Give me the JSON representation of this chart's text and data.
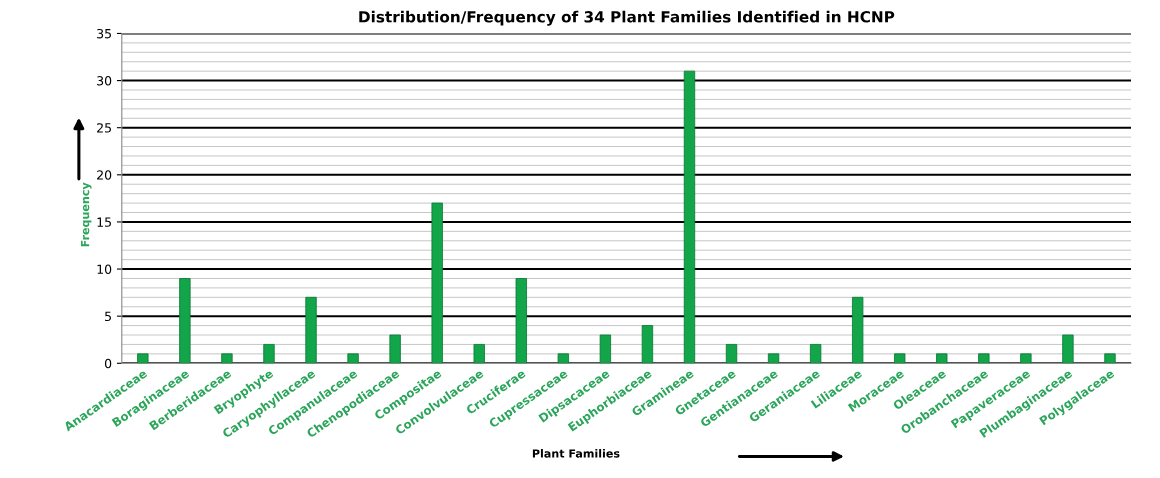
{
  "chart_data": {
    "type": "bar",
    "title": "Distribution/Frequency of 34 Plant Families Identified in HCNP",
    "xlabel": "Plant Families",
    "ylabel": "Frequency",
    "categories": [
      "Anacardiaceae",
      "Boraginaceae",
      "Berberidaceae",
      "Bryophyte",
      "Caryophyllaceae",
      "Companulaceae",
      "Chenopodiaceae",
      "Compositae",
      "Convolvulaceae",
      "Cruciferae",
      "Cupressaceae",
      "Dipsacaceae",
      "Euphorbiaceae",
      "Gramineae",
      "Gnetaceae",
      "Gentianaceae",
      "Geraniaceae",
      "Liliaceae",
      "Moraceae",
      "Oleaceae",
      "Orobanchaceae",
      "Papaveraceae",
      "Plumbaginaceae",
      "Polygalaceae"
    ],
    "values": [
      1,
      9,
      1,
      2,
      7,
      1,
      3,
      17,
      2,
      9,
      1,
      3,
      4,
      31,
      2,
      1,
      2,
      7,
      1,
      1,
      1,
      1,
      3,
      1
    ],
    "color": "#12a54a",
    "ylim": [
      0,
      35
    ],
    "yticks": [
      0,
      5,
      10,
      15,
      20,
      25,
      30,
      35
    ],
    "grid": "y"
  }
}
